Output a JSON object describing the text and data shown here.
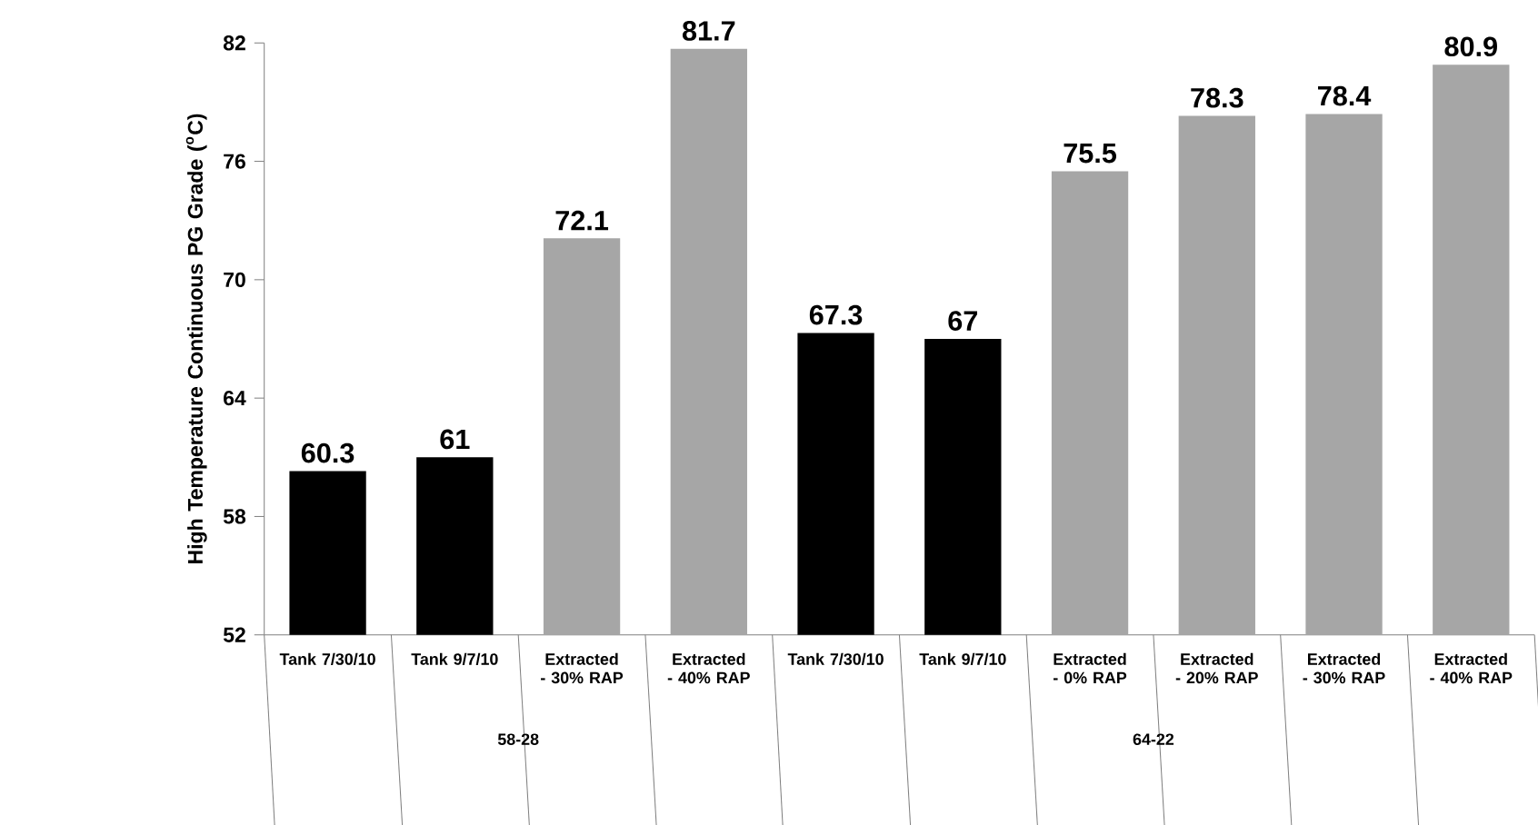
{
  "chart_data": {
    "type": "bar",
    "ylabel": "High Temperature Continuous PG Grade ($^{o}$C)",
    "categories": [
      "Tank 7/30/10",
      "Tank 9/7/10",
      "Extracted - 30% RAP",
      "Extracted - 40% RAP",
      "Tank 7/30/10",
      "Tank 9/7/10",
      "Extracted - 0% RAP",
      "Extracted - 20% RAP",
      "Extracted - 30% RAP",
      "Extracted - 40% RAP"
    ],
    "values": [
      60.3,
      61,
      72.1,
      81.7,
      67.3,
      67,
      75.5,
      78.3,
      78.4,
      80.9
    ],
    "colors": [
      "#000000",
      "#000000",
      "#a6a6a6",
      "#a6a6a6",
      "#000000",
      "#000000",
      "#a6a6a6",
      "#a6a6a6",
      "#a6a6a6",
      "#a6a6a6"
    ],
    "ylim": [
      52,
      82
    ],
    "yticks": [
      52,
      58,
      64,
      70,
      76,
      82
    ],
    "data_labels": true,
    "annotations": [
      "58-28",
      "64-22"
    ]
  }
}
